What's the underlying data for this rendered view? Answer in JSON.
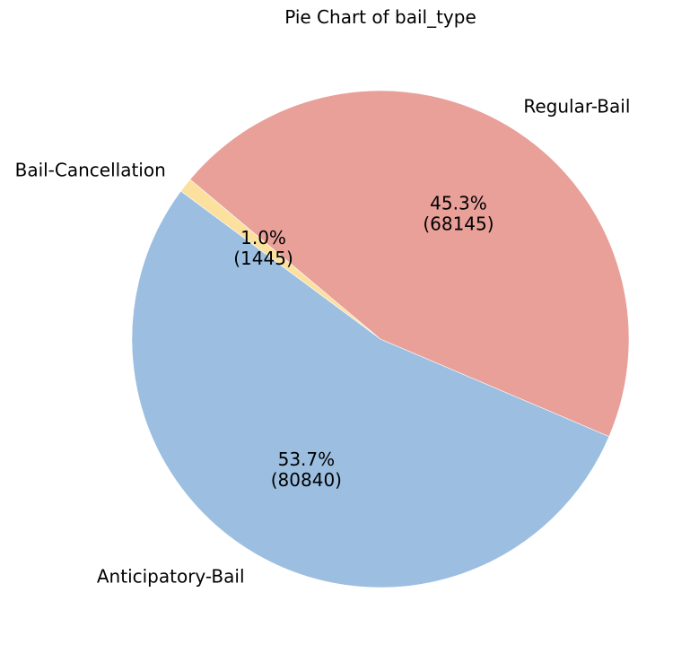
{
  "chart_data": {
    "type": "pie",
    "title": "Pie Chart of bail_type",
    "start_angle_deg": 140,
    "direction": "counterclockwise",
    "slices": [
      {
        "label": "Bail-Cancellation",
        "value": 1445,
        "percent_label": "1.0%",
        "count_label": "(1445)",
        "color": "#fce09e"
      },
      {
        "label": "Anticipatory-Bail",
        "value": 80840,
        "percent_label": "53.7%",
        "count_label": "(80840)",
        "color": "#9cbfe1"
      },
      {
        "label": "Regular-Bail",
        "value": 68145,
        "percent_label": "45.3%",
        "count_label": "(68145)",
        "color": "#e8a099"
      }
    ]
  }
}
